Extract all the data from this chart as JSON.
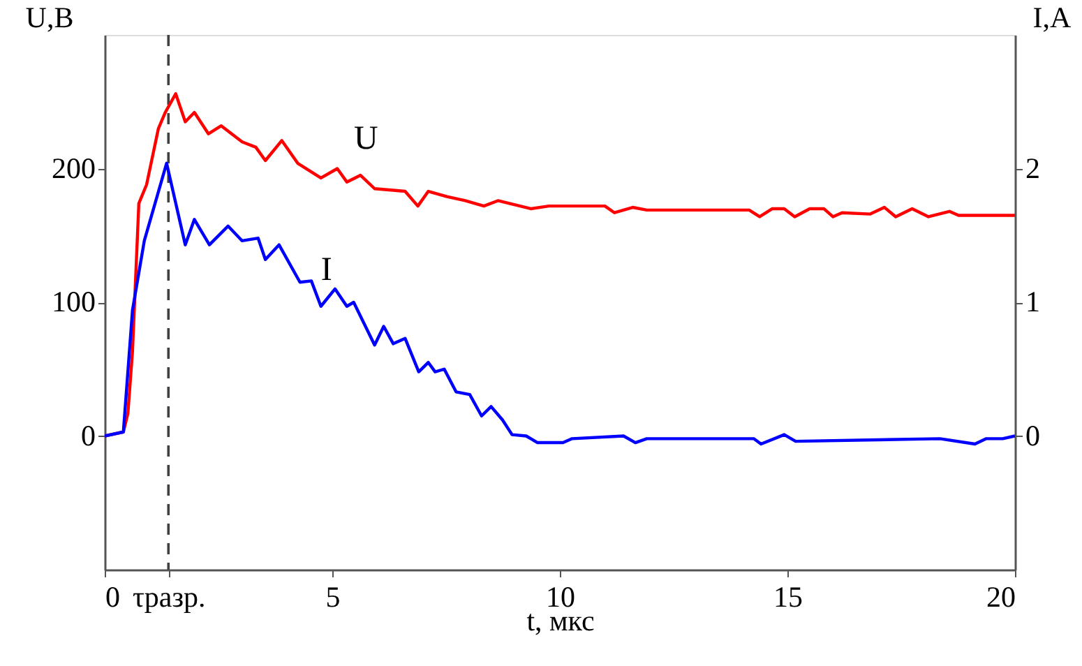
{
  "chart_data": {
    "type": "line",
    "xlabel": "t, мкс",
    "ylabel": "U,В",
    "y2label": "I,А",
    "xlim": [
      0,
      20
    ],
    "xticks": [
      0,
      {
        "value": 1.4,
        "label": "τразр."
      },
      5,
      10,
      15,
      20
    ],
    "ylim": [
      -100,
      300
    ],
    "yticks": [
      0,
      100,
      200
    ],
    "y2lim": [
      -1,
      3
    ],
    "y2ticks": [
      0,
      1,
      2
    ],
    "grid": false,
    "line_style": "solid",
    "marker": "none",
    "ref_lines": [
      {
        "axis": "x",
        "value": 1.4,
        "color": "#404040",
        "line_style": "dashed"
      }
    ],
    "series": [
      {
        "name": "U",
        "color": "#ff0000",
        "axis": "y",
        "x": [
          0,
          0.41,
          0.51,
          0.61,
          0.75,
          0.92,
          1.18,
          1.33,
          1.56,
          1.77,
          1.97,
          2.28,
          2.56,
          3.02,
          3.32,
          3.53,
          3.89,
          4.24,
          4.75,
          5.11,
          5.32,
          5.62,
          5.93,
          6.6,
          6.88,
          7.11,
          7.52,
          7.92,
          8.33,
          8.64,
          9.36,
          9.76,
          10.99,
          11.2,
          11.6,
          11.91,
          14.16,
          14.39,
          14.67,
          14.93,
          15.16,
          15.49,
          15.8,
          16.0,
          16.2,
          16.82,
          17.13,
          17.38,
          17.74,
          18.1,
          18.56,
          18.76,
          19.73,
          20
        ],
        "values": [
          0,
          3,
          17,
          63,
          174,
          188,
          230,
          242,
          256,
          235,
          242,
          226,
          232,
          220,
          216,
          206,
          221,
          204,
          193,
          200,
          190,
          195,
          185,
          183,
          172,
          183,
          179,
          176,
          172,
          176,
          170,
          172,
          172,
          167,
          171,
          169,
          169,
          164,
          170,
          170,
          164,
          170,
          170,
          164,
          167,
          166,
          171,
          164,
          170,
          164,
          168,
          165,
          165,
          165
        ]
      },
      {
        "name": "I",
        "color": "#0000ff",
        "axis": "y2",
        "x": [
          0,
          0.41,
          0.61,
          0.87,
          1.36,
          1.77,
          1.97,
          2.3,
          2.71,
          3.02,
          3.37,
          3.53,
          3.83,
          4.29,
          4.54,
          4.75,
          5.06,
          5.32,
          5.47,
          5.93,
          6.13,
          6.34,
          6.6,
          6.9,
          7.11,
          7.26,
          7.46,
          7.72,
          8.02,
          8.28,
          8.49,
          8.74,
          8.95,
          9.26,
          9.51,
          10.07,
          10.27,
          11.4,
          11.66,
          11.91,
          14.26,
          14.42,
          14.93,
          15.18,
          18.35,
          19.12,
          19.37,
          19.73,
          20
        ],
        "values": [
          0,
          0.03,
          0.94,
          1.46,
          2.04,
          1.43,
          1.62,
          1.43,
          1.57,
          1.46,
          1.48,
          1.32,
          1.43,
          1.15,
          1.16,
          0.97,
          1.1,
          0.97,
          1.0,
          0.68,
          0.82,
          0.69,
          0.73,
          0.48,
          0.55,
          0.48,
          0.5,
          0.33,
          0.31,
          0.15,
          0.22,
          0.12,
          0.01,
          0.0,
          -0.05,
          -0.05,
          -0.02,
          0.0,
          -0.05,
          -0.02,
          -0.02,
          -0.06,
          0.01,
          -0.04,
          -0.02,
          -0.06,
          -0.02,
          -0.02,
          0
        ]
      }
    ]
  }
}
